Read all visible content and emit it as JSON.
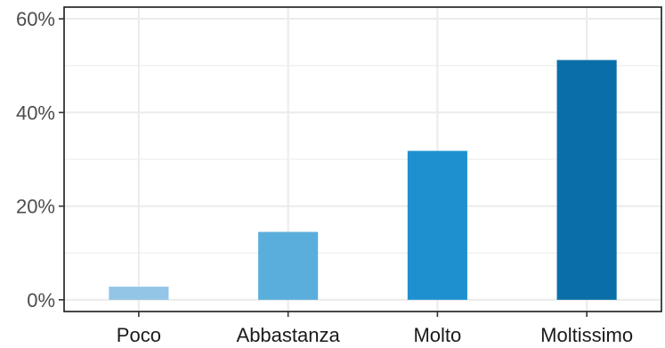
{
  "chart_data": {
    "type": "bar",
    "title": "",
    "xlabel": "",
    "ylabel": "",
    "categories": [
      "Poco",
      "Abbastanza",
      "Molto",
      "Moltissimo"
    ],
    "values": [
      2.8,
      14.5,
      31.8,
      51.2
    ],
    "value_unit": "%",
    "ylim": [
      -2.5,
      62.5
    ],
    "yticks": [
      0,
      20,
      40,
      60
    ],
    "ytick_labels": [
      "0%",
      "20%",
      "40%",
      "60%"
    ],
    "grid": true,
    "legend": "none",
    "bar_colors": [
      "#92c5e6",
      "#5aaedb",
      "#1e90cf",
      "#0a6fa8"
    ],
    "panel_border_color": "#1a1a1a",
    "grid_color": "#ebebeb"
  }
}
